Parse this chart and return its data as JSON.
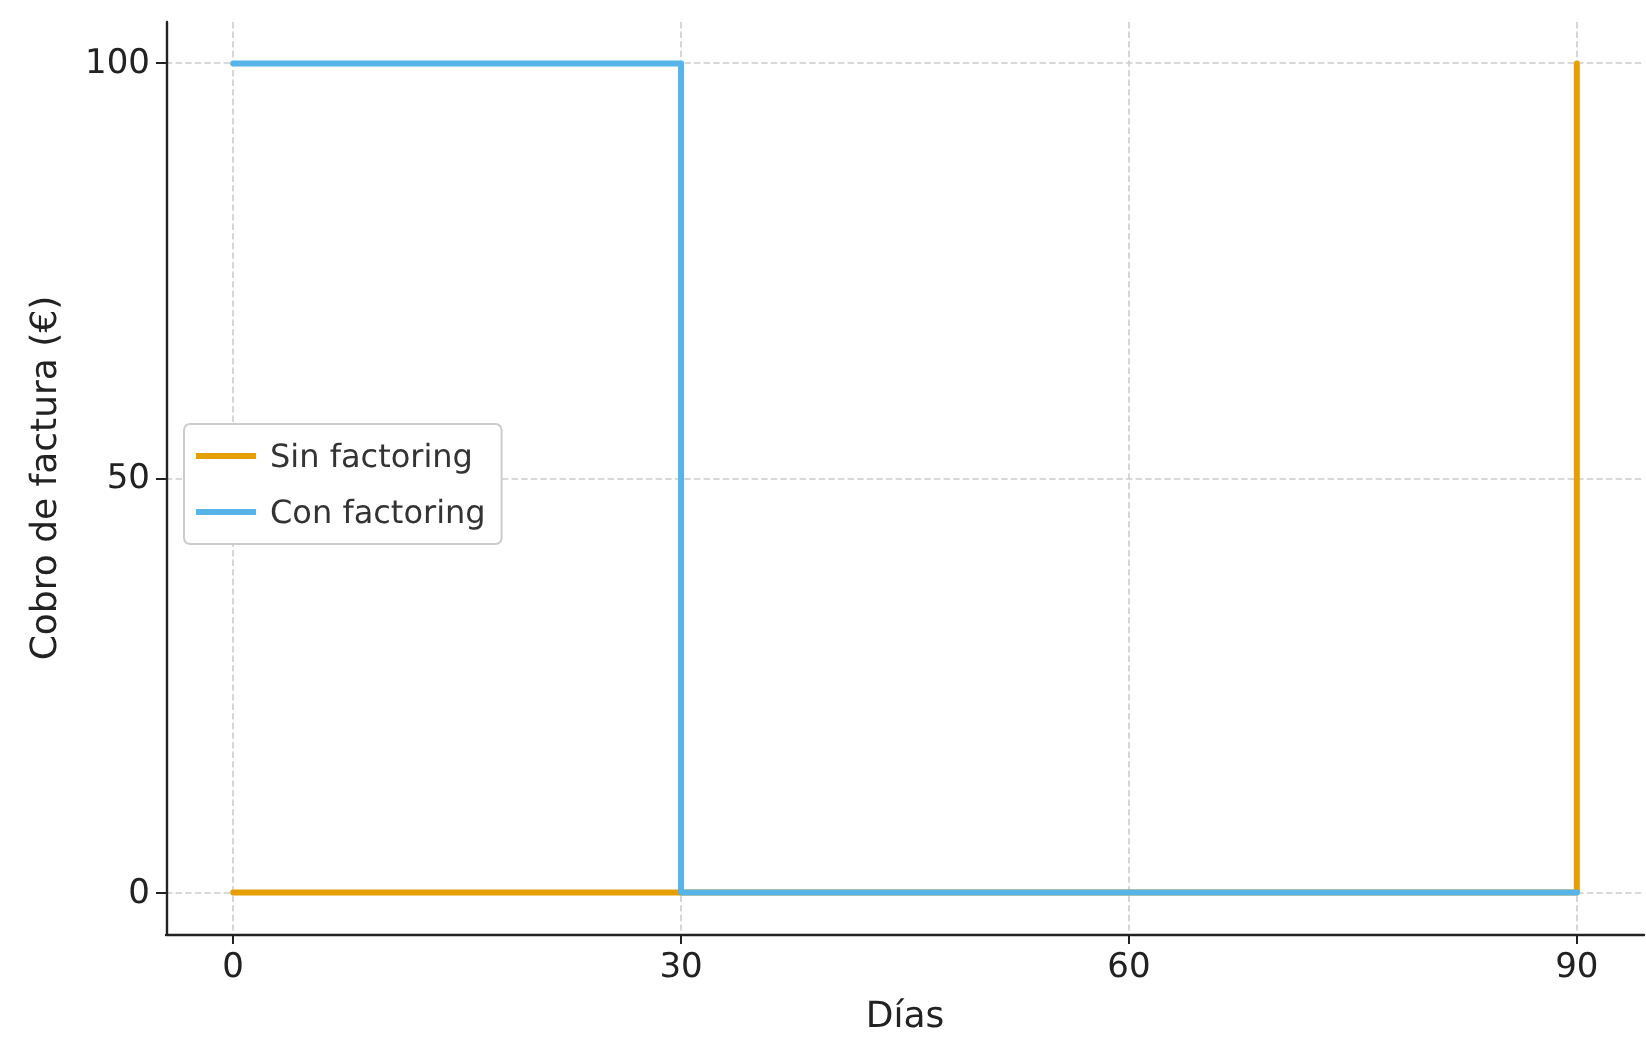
{
  "chart_data": {
    "type": "line",
    "xlabel": "Días",
    "ylabel": "Cobro de factura (€)",
    "xlim": [
      -4.5,
      94.5
    ],
    "xticks": [
      0,
      30,
      60,
      90
    ],
    "ylim": [
      -5,
      105
    ],
    "yticks": [
      0,
      50,
      100
    ],
    "series": [
      {
        "name": "Sin factoring",
        "color": "#e69f00",
        "x": [
          0,
          90,
          90
        ],
        "values": [
          0,
          0,
          100
        ]
      },
      {
        "name": "Con factoring",
        "color": "#56b4e9",
        "x": [
          0,
          30,
          30,
          90
        ],
        "values": [
          100,
          100,
          0,
          0
        ]
      }
    ],
    "grid": true,
    "legend": "center left",
    "marker": "none",
    "line_style": "solid"
  }
}
